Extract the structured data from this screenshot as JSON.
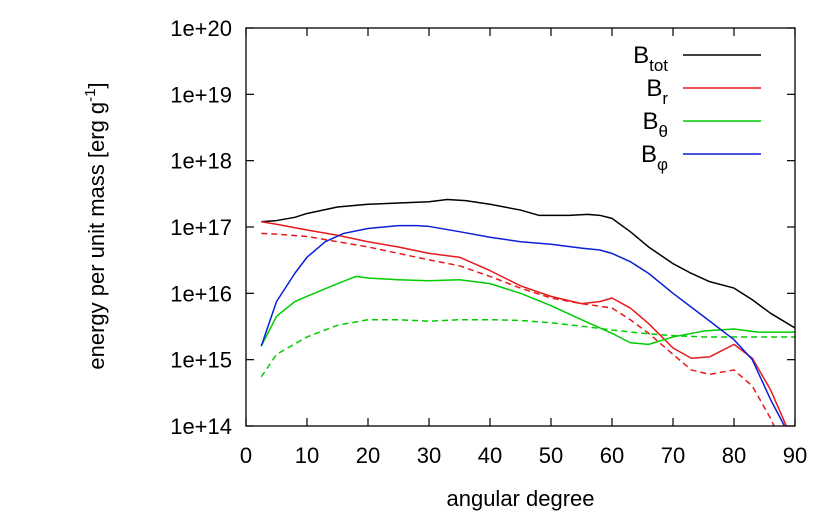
{
  "chart_data": {
    "type": "line",
    "xlabel": "angular degree",
    "ylabel": "energy per unit mass [erg g",
    "ylabel_sup": "-1",
    "ylabel_end": "]",
    "xlim": [
      0,
      90
    ],
    "ylim": [
      100000000000000.0,
      1e+20
    ],
    "yscale": "log",
    "xticks": [
      0,
      10,
      20,
      30,
      40,
      50,
      60,
      70,
      80,
      90
    ],
    "yticks": [
      100000000000000.0,
      1000000000000000.0,
      1e+16,
      1e+17,
      1e+18,
      1e+19,
      1e+20
    ],
    "xtick_labels": [
      "0",
      "10",
      "20",
      "30",
      "40",
      "50",
      "60",
      "70",
      "80",
      "90"
    ],
    "ytick_labels": [
      "1e+14",
      "1e+15",
      "1e+16",
      "1e+17",
      "1e+18",
      "1e+19",
      "1e+20"
    ],
    "grid": false,
    "legend_position": "top-right",
    "series": [
      {
        "name": "B",
        "name_sub": "tot",
        "color": "#000000",
        "dash": "solid",
        "legend": true,
        "x": [
          2.5,
          5,
          8,
          10,
          15,
          20,
          25,
          30,
          33,
          36,
          40,
          45,
          48,
          50,
          53,
          56,
          58,
          60,
          63,
          66,
          70,
          73,
          76,
          80,
          83,
          86,
          90
        ],
        "y": [
          1.2e+17,
          1.25e+17,
          1.4e+17,
          1.6e+17,
          2e+17,
          2.2e+17,
          2.3e+17,
          2.4e+17,
          2.6e+17,
          2.5e+17,
          2.2e+17,
          1.8e+17,
          1.5e+17,
          1.5e+17,
          1.5e+17,
          1.55e+17,
          1.5e+17,
          1.35e+17,
          8.5e+16,
          5e+16,
          2.8e+16,
          2e+16,
          1.5e+16,
          1.2e+16,
          8000000000000000.0,
          5000000000000000.0,
          3000000000000000.0
        ]
      },
      {
        "name": "B",
        "name_sub": "r",
        "color": "#e8191c",
        "dash": "solid",
        "legend": true,
        "x": [
          2.5,
          5,
          10,
          15,
          20,
          25,
          30,
          35,
          40,
          45,
          50,
          55,
          58,
          60,
          63,
          66,
          70,
          73,
          76,
          80,
          83,
          86,
          90
        ],
        "y": [
          1.2e+17,
          1.1e+17,
          9e+16,
          7.5e+16,
          6e+16,
          5e+16,
          4e+16,
          3.5e+16,
          2.2e+16,
          1.3e+16,
          9000000000000000.0,
          7000000000000000.0,
          7500000000000000.0,
          8500000000000000.0,
          6000000000000000.0,
          3500000000000000.0,
          1500000000000000.0,
          1050000000000000.0,
          1100000000000000.0,
          1700000000000000.0,
          1050000000000000.0,
          350000000000000.0,
          50000000000000.0
        ]
      },
      {
        "name": "",
        "color": "#e8191c",
        "dash": "dashed",
        "legend": false,
        "x": [
          2.5,
          5,
          10,
          15,
          20,
          25,
          30,
          35,
          40,
          45,
          50,
          55,
          60,
          63,
          66,
          70,
          73,
          76,
          80,
          83,
          86,
          90
        ],
        "y": [
          8e+16,
          7.8e+16,
          7.2e+16,
          6e+16,
          5e+16,
          4e+16,
          3.2e+16,
          2.6e+16,
          1.8e+16,
          1.2e+16,
          8500000000000000.0,
          7000000000000000.0,
          6000000000000000.0,
          4000000000000000.0,
          2500000000000000.0,
          1200000000000000.0,
          700000000000000.0,
          600000000000000.0,
          700000000000000.0,
          400000000000000.0,
          130000000000000.0,
          20000000000000.0
        ]
      },
      {
        "name": "B",
        "name_sub": "θ",
        "color": "#00cc00",
        "dash": "solid",
        "legend": true,
        "x": [
          2.5,
          5,
          8,
          10,
          15,
          18,
          20,
          25,
          30,
          35,
          40,
          45,
          50,
          55,
          60,
          63,
          66,
          70,
          75,
          80,
          84,
          90
        ],
        "y": [
          1600000000000000.0,
          4500000000000000.0,
          7500000000000000.0,
          9000000000000000.0,
          1.4e+16,
          1.8e+16,
          1.7e+16,
          1.6e+16,
          1.55e+16,
          1.6e+16,
          1.4e+16,
          1e+16,
          6500000000000000.0,
          4000000000000000.0,
          2500000000000000.0,
          1800000000000000.0,
          1700000000000000.0,
          2200000000000000.0,
          2700000000000000.0,
          2900000000000000.0,
          2600000000000000.0,
          2600000000000000.0
        ]
      },
      {
        "name": "",
        "color": "#00cc00",
        "dash": "dashed",
        "legend": false,
        "x": [
          2.5,
          5,
          10,
          15,
          20,
          25,
          30,
          35,
          40,
          45,
          50,
          55,
          60,
          65,
          70,
          75,
          80,
          85,
          90
        ],
        "y": [
          550000000000000.0,
          1200000000000000.0,
          2200000000000000.0,
          3300000000000000.0,
          4000000000000000.0,
          4000000000000000.0,
          3800000000000000.0,
          4000000000000000.0,
          4000000000000000.0,
          3900000000000000.0,
          3600000000000000.0,
          3200000000000000.0,
          2800000000000000.0,
          2500000000000000.0,
          2300000000000000.0,
          2200000000000000.0,
          2200000000000000.0,
          2200000000000000.0,
          2200000000000000.0
        ]
      },
      {
        "name": "B",
        "name_sub": "φ",
        "color": "#0a1fd6",
        "dash": "solid",
        "legend": true,
        "x": [
          2.5,
          5,
          8,
          10,
          13,
          16,
          20,
          25,
          28,
          30,
          35,
          40,
          45,
          50,
          55,
          58,
          60,
          63,
          66,
          70,
          75,
          80,
          83,
          86,
          90
        ],
        "y": [
          1600000000000000.0,
          7500000000000000.0,
          2e+16,
          3.5e+16,
          6e+16,
          8e+16,
          9.5e+16,
          1.05e+17,
          1.05e+17,
          1.02e+17,
          8.5e+16,
          7e+16,
          6e+16,
          5.5e+16,
          4.8e+16,
          4.5e+16,
          4e+16,
          3e+16,
          2e+16,
          1e+16,
          4500000000000000.0,
          2000000000000000.0,
          1000000000000000.0,
          250000000000000.0,
          50000000000000.0
        ]
      }
    ]
  }
}
